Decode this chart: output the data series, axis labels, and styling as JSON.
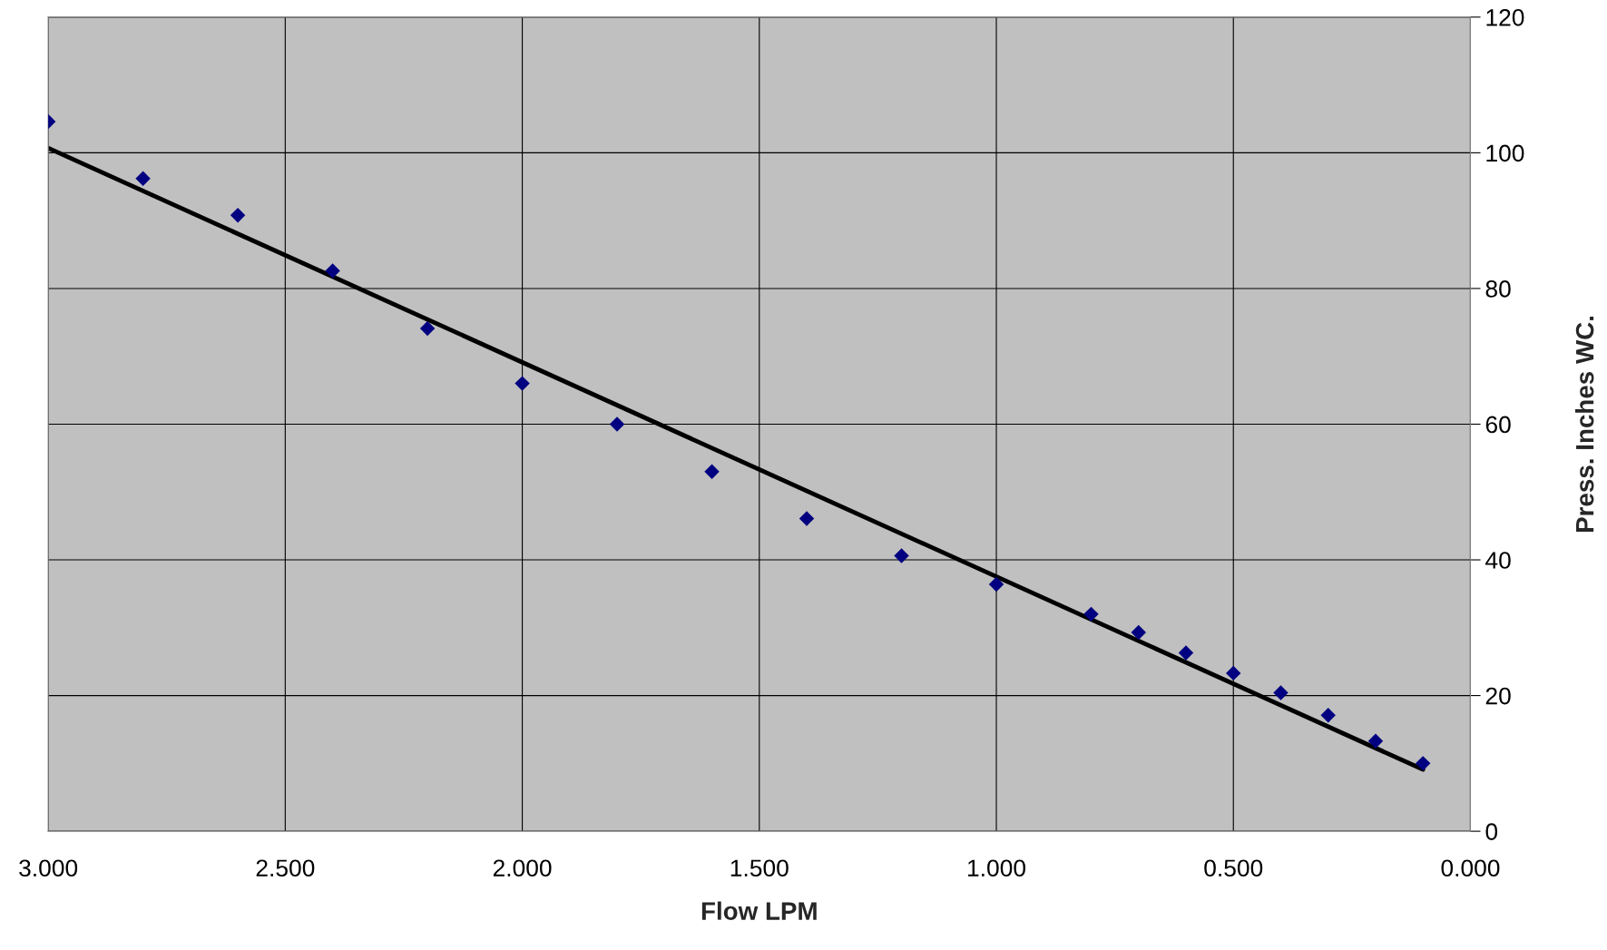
{
  "chart_data": {
    "type": "scatter",
    "xlabel": "Flow LPM",
    "ylabel": "Press. Inches WC.",
    "xlim": [
      3.0,
      0.0
    ],
    "xticks": [
      {
        "value": 3,
        "label": "3.000"
      },
      {
        "value": 2.5,
        "label": "2.500"
      },
      {
        "value": 2,
        "label": "2.000"
      },
      {
        "value": 1.5,
        "label": "1.500"
      },
      {
        "value": 1,
        "label": "1.000"
      },
      {
        "value": 0.5,
        "label": "0.500"
      },
      {
        "value": 0,
        "label": "0.000"
      }
    ],
    "ylim": [
      0,
      120
    ],
    "yticks": [
      0,
      20,
      40,
      60,
      80,
      100,
      120
    ],
    "grid": true,
    "series": [
      {
        "marker": "diamond",
        "color": "#000080",
        "x": [
          3.0,
          2.8,
          2.6,
          2.4,
          2.2,
          2.0,
          1.8,
          1.6,
          1.4,
          1.2,
          1.0,
          0.8,
          0.7,
          0.6,
          0.5,
          0.4,
          0.3,
          0.2,
          0.1
        ],
        "values": [
          104.6,
          96.2,
          90.8,
          82.6,
          74.1,
          66.0,
          60.0,
          53.0,
          46.1,
          40.6,
          36.4,
          32.0,
          29.3,
          26.3,
          23.3,
          20.4,
          17.1,
          13.3,
          10.0
        ]
      },
      {
        "type": "line",
        "color": "#000000",
        "x": [
          3.0,
          0.1
        ],
        "values": [
          100.7,
          9.1
        ]
      }
    ]
  }
}
